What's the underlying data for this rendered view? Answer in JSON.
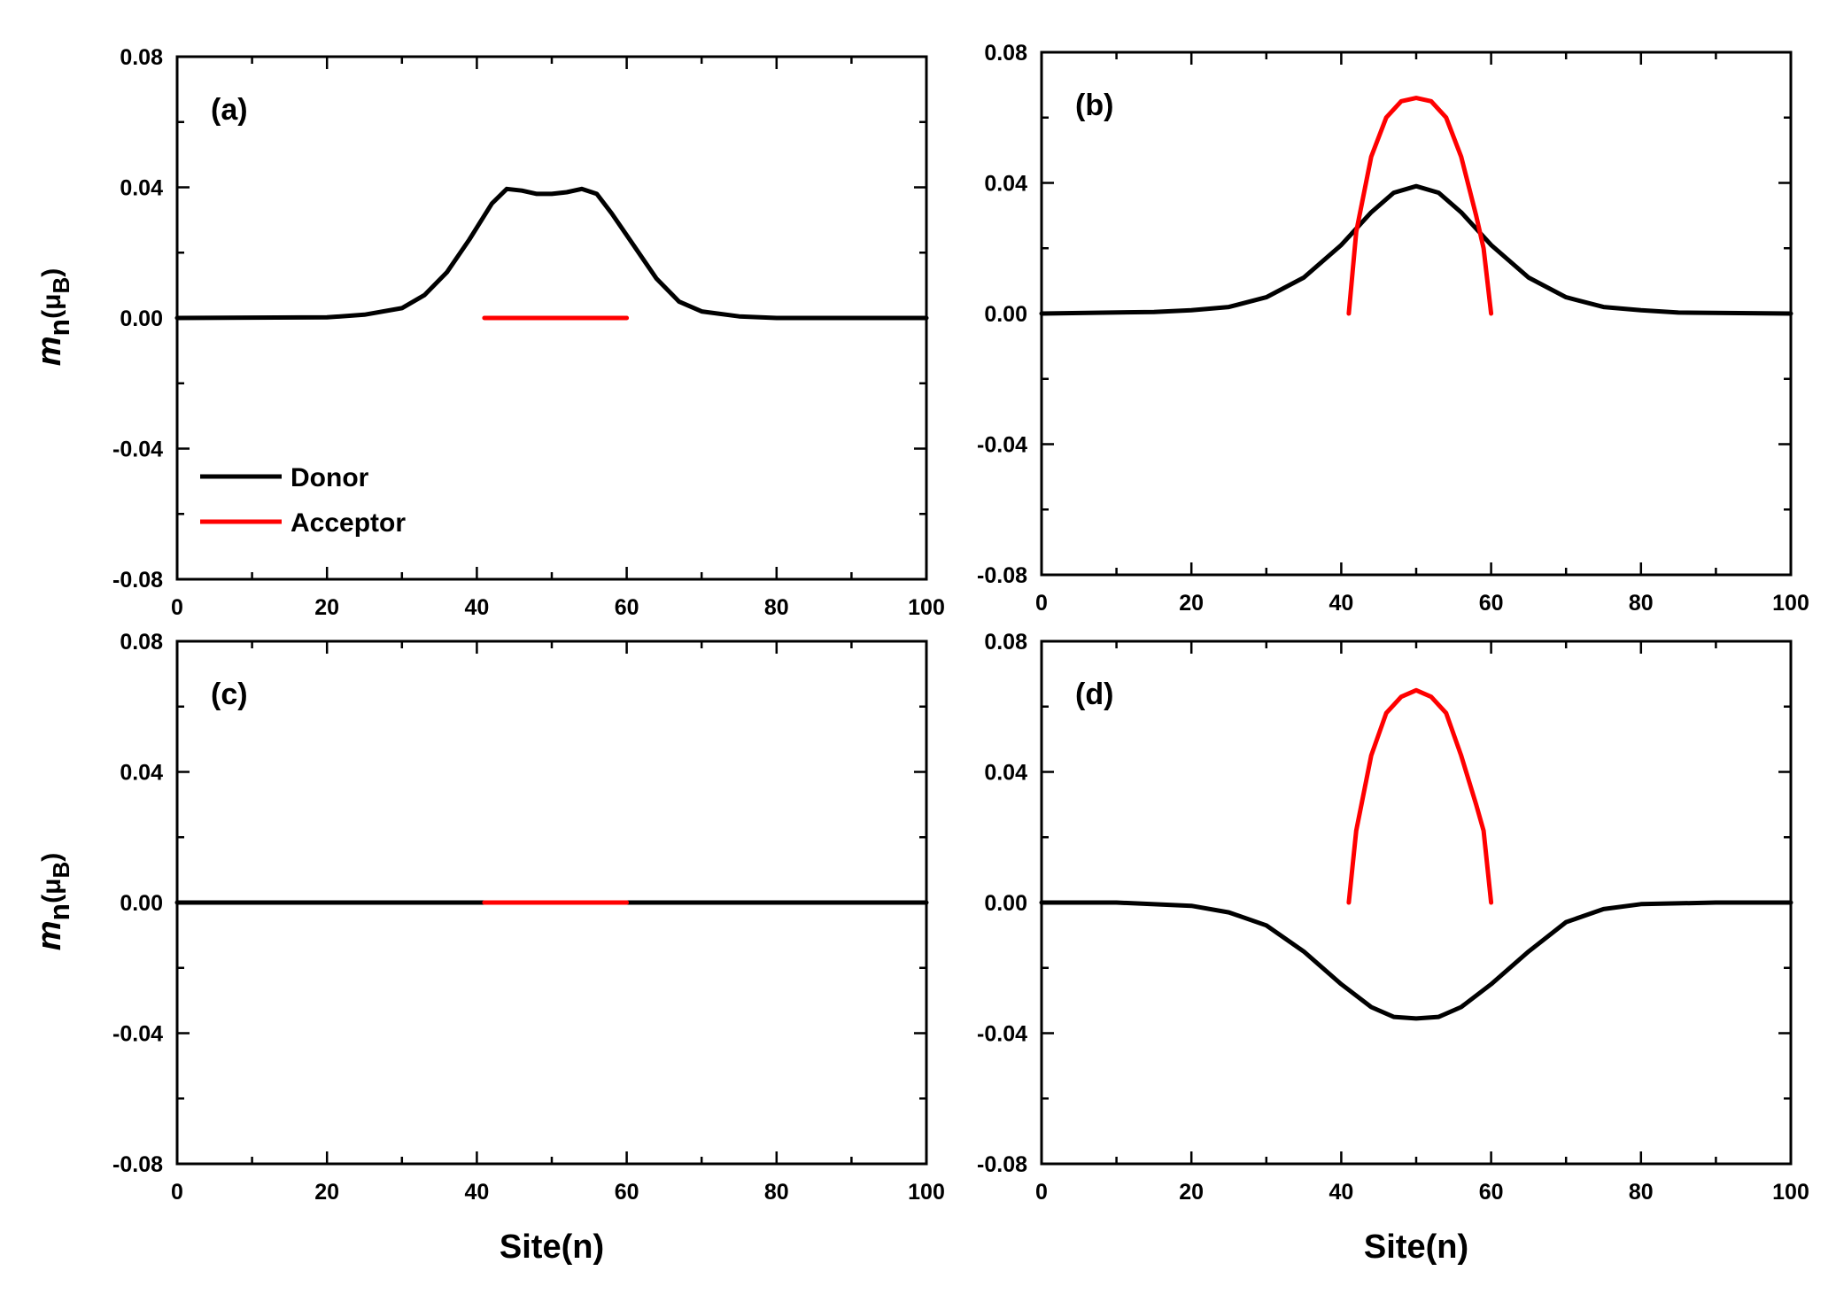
{
  "figure": {
    "ylabel_main": "m",
    "ylabel_sub": "n",
    "ylabel_unit_open": "(",
    "ylabel_unit_mu": "μ",
    "ylabel_unit_sub": "B",
    "ylabel_unit_close": ")"
  },
  "legend": {
    "entries": [
      "Donor",
      "Acceptor"
    ],
    "colors": [
      "#000000",
      "#ff0000"
    ]
  },
  "chart_data": [
    {
      "type": "line",
      "panel": "(a)",
      "xlabel": "",
      "ylabel": "m_n(μB)",
      "xlim": [
        0,
        100
      ],
      "ylim": [
        -0.08,
        0.08
      ],
      "xticks": [
        "0",
        "20",
        "40",
        "60",
        "80",
        "100"
      ],
      "yticks": [
        "0.08",
        "0.04",
        "0.00",
        "-0.04",
        "-0.08"
      ],
      "series": [
        {
          "name": "Donor",
          "color": "#000000",
          "x": [
            0,
            20,
            25,
            30,
            33,
            36,
            39,
            42,
            44,
            46,
            48,
            50,
            52,
            54,
            56,
            58,
            61,
            64,
            67,
            70,
            75,
            80,
            100
          ],
          "y": [
            0,
            0.0002,
            0.001,
            0.003,
            0.007,
            0.014,
            0.024,
            0.035,
            0.0395,
            0.039,
            0.038,
            0.038,
            0.0385,
            0.0395,
            0.038,
            0.032,
            0.022,
            0.012,
            0.005,
            0.002,
            0.0005,
            0,
            0
          ]
        },
        {
          "name": "Acceptor",
          "color": "#ff0000",
          "x": [
            41,
            60
          ],
          "y": [
            0,
            0
          ]
        }
      ]
    },
    {
      "type": "line",
      "panel": "(b)",
      "xlabel": "",
      "ylabel": "",
      "xlim": [
        0,
        100
      ],
      "ylim": [
        -0.08,
        0.08
      ],
      "xticks": [
        "0",
        "20",
        "40",
        "60",
        "80",
        "100"
      ],
      "yticks": [
        "0.08",
        "0.04",
        "0.00",
        "-0.04",
        "-0.08"
      ],
      "series": [
        {
          "name": "Donor",
          "color": "#000000",
          "x": [
            0,
            15,
            20,
            25,
            30,
            35,
            40,
            44,
            47,
            50,
            53,
            56,
            60,
            65,
            70,
            75,
            80,
            85,
            100
          ],
          "y": [
            0,
            0.0005,
            0.001,
            0.002,
            0.005,
            0.011,
            0.021,
            0.031,
            0.037,
            0.039,
            0.037,
            0.031,
            0.021,
            0.011,
            0.005,
            0.002,
            0.001,
            0.0003,
            0
          ]
        },
        {
          "name": "Acceptor",
          "color": "#ff0000",
          "x": [
            41,
            42,
            44,
            46,
            48,
            50,
            52,
            54,
            56,
            58,
            59,
            60
          ],
          "y": [
            0,
            0.025,
            0.048,
            0.06,
            0.065,
            0.066,
            0.065,
            0.06,
            0.048,
            0.03,
            0.02,
            0
          ]
        }
      ]
    },
    {
      "type": "line",
      "panel": "(c)",
      "xlabel": "Site(n)",
      "ylabel": "m_n(μB)",
      "xlim": [
        0,
        100
      ],
      "ylim": [
        -0.08,
        0.08
      ],
      "xticks": [
        "0",
        "20",
        "40",
        "60",
        "80",
        "100"
      ],
      "yticks": [
        "0.08",
        "0.04",
        "0.00",
        "-0.04",
        "-0.08"
      ],
      "series": [
        {
          "name": "Donor",
          "color": "#000000",
          "x": [
            0,
            100
          ],
          "y": [
            0,
            0
          ]
        },
        {
          "name": "Acceptor",
          "color": "#ff0000",
          "x": [
            41,
            60
          ],
          "y": [
            0,
            0
          ]
        }
      ]
    },
    {
      "type": "line",
      "panel": "(d)",
      "xlabel": "Site(n)",
      "ylabel": "",
      "xlim": [
        0,
        100
      ],
      "ylim": [
        -0.08,
        0.08
      ],
      "xticks": [
        "0",
        "20",
        "40",
        "60",
        "80",
        "100"
      ],
      "yticks": [
        "0.08",
        "0.04",
        "0.00",
        "-0.04",
        "-0.08"
      ],
      "series": [
        {
          "name": "Donor",
          "color": "#000000",
          "x": [
            0,
            10,
            20,
            25,
            30,
            35,
            40,
            44,
            47,
            50,
            53,
            56,
            60,
            65,
            70,
            75,
            80,
            90,
            100
          ],
          "y": [
            0,
            0,
            -0.001,
            -0.003,
            -0.007,
            -0.015,
            -0.025,
            -0.032,
            -0.035,
            -0.0355,
            -0.035,
            -0.032,
            -0.025,
            -0.015,
            -0.006,
            -0.002,
            -0.0005,
            0,
            0
          ]
        },
        {
          "name": "Acceptor",
          "color": "#ff0000",
          "x": [
            41,
            42,
            44,
            46,
            48,
            50,
            52,
            54,
            56,
            58,
            59,
            60
          ],
          "y": [
            0,
            0.022,
            0.045,
            0.058,
            0.063,
            0.065,
            0.063,
            0.058,
            0.045,
            0.03,
            0.022,
            0
          ]
        }
      ]
    }
  ]
}
